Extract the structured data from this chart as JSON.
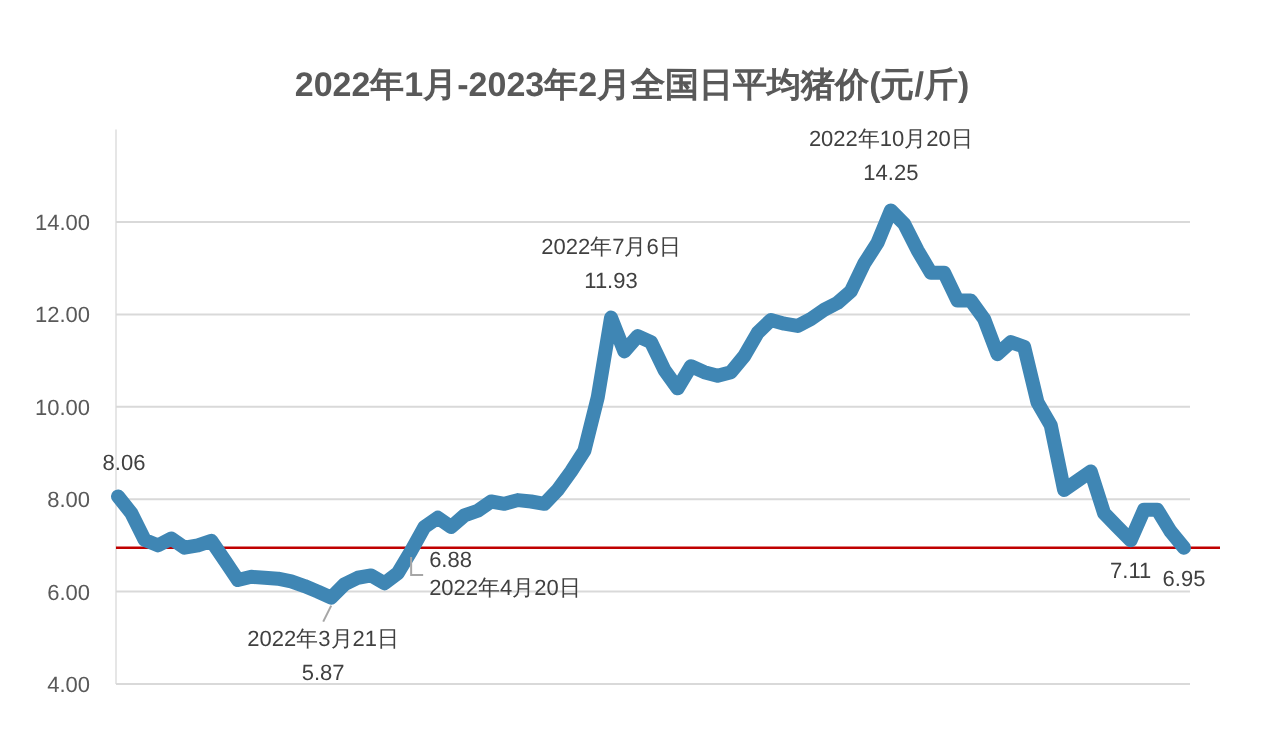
{
  "chart_data": {
    "type": "line",
    "title": "2022年1月-2023年2月全国日平均猪价(元/斤)",
    "categories": [
      null,
      null,
      null,
      null,
      null,
      null,
      null,
      null,
      null,
      null,
      null,
      null,
      null,
      null,
      null,
      null,
      null,
      null,
      null,
      null,
      null,
      null,
      null,
      null,
      null,
      null,
      null,
      null,
      null,
      null,
      null,
      null,
      null,
      null,
      null,
      null,
      null,
      null,
      null,
      null,
      null,
      null,
      null,
      null,
      null,
      null,
      null,
      null,
      null,
      null,
      null,
      null,
      null,
      null,
      null,
      null,
      null,
      null,
      null,
      null,
      null,
      null,
      null,
      null,
      null,
      null,
      null,
      null,
      null,
      null,
      null,
      null,
      null,
      null,
      null,
      null,
      null,
      null,
      null,
      null,
      null
    ],
    "values": [
      8.06,
      7.7,
      7.12,
      7.0,
      7.15,
      6.95,
      7.0,
      7.1,
      6.68,
      6.25,
      6.32,
      6.3,
      6.28,
      6.22,
      6.12,
      6.0,
      5.87,
      6.16,
      6.3,
      6.35,
      6.18,
      6.4,
      6.88,
      7.4,
      7.6,
      7.4,
      7.65,
      7.75,
      7.95,
      7.9,
      7.98,
      7.95,
      7.9,
      8.2,
      8.6,
      9.05,
      10.2,
      11.93,
      11.2,
      11.53,
      11.4,
      10.8,
      10.4,
      10.88,
      10.75,
      10.67,
      10.75,
      11.1,
      11.6,
      11.88,
      11.8,
      11.75,
      11.9,
      12.1,
      12.25,
      12.5,
      13.1,
      13.55,
      14.25,
      13.96,
      13.39,
      12.9,
      12.9,
      12.3,
      12.3,
      11.9,
      11.14,
      11.4,
      11.3,
      10.1,
      9.6,
      8.2,
      8.4,
      8.6,
      7.7,
      7.4,
      7.11,
      7.77,
      7.77,
      7.3,
      6.95
    ],
    "value_labels": [
      "8.06",
      null,
      null,
      null,
      null,
      null,
      null,
      null,
      null,
      null,
      null,
      null,
      null,
      null,
      null,
      null,
      "5.87",
      null,
      null,
      null,
      null,
      null,
      "6.88",
      null,
      null,
      null,
      null,
      null,
      null,
      null,
      null,
      null,
      null,
      null,
      null,
      null,
      null,
      "11.93",
      null,
      null,
      null,
      null,
      null,
      null,
      null,
      null,
      null,
      null,
      null,
      null,
      null,
      null,
      null,
      null,
      null,
      null,
      null,
      null,
      "14.25",
      null,
      null,
      null,
      null,
      null,
      null,
      null,
      null,
      null,
      null,
      null,
      null,
      null,
      null,
      null,
      null,
      null,
      "7.11",
      null,
      null,
      null,
      "6.95"
    ],
    "color": "#3f86b4",
    "grid": "y",
    "tick_labels": "y",
    "ylim": [
      4,
      16
    ],
    "yticks": [
      {
        "value": 4,
        "label": "4.00"
      },
      {
        "value": 6,
        "label": "6.00"
      },
      {
        "value": 8,
        "label": "8.00"
      },
      {
        "value": 10,
        "label": "10.00"
      },
      {
        "value": 12,
        "label": "12.00"
      },
      {
        "value": 14,
        "label": "14.00"
      }
    ],
    "ref_lines": [
      {
        "axis": "y",
        "value": 6.95,
        "color": "#c00000"
      }
    ],
    "annotations": [
      {
        "text": "2022年3月21日",
        "y": 5.87
      },
      {
        "text": "2022年4月20日",
        "y": 6.88
      },
      {
        "text": "2022年7月6日",
        "y": 11.93
      },
      {
        "text": "2022年10月20日",
        "y": 14.25
      }
    ]
  }
}
